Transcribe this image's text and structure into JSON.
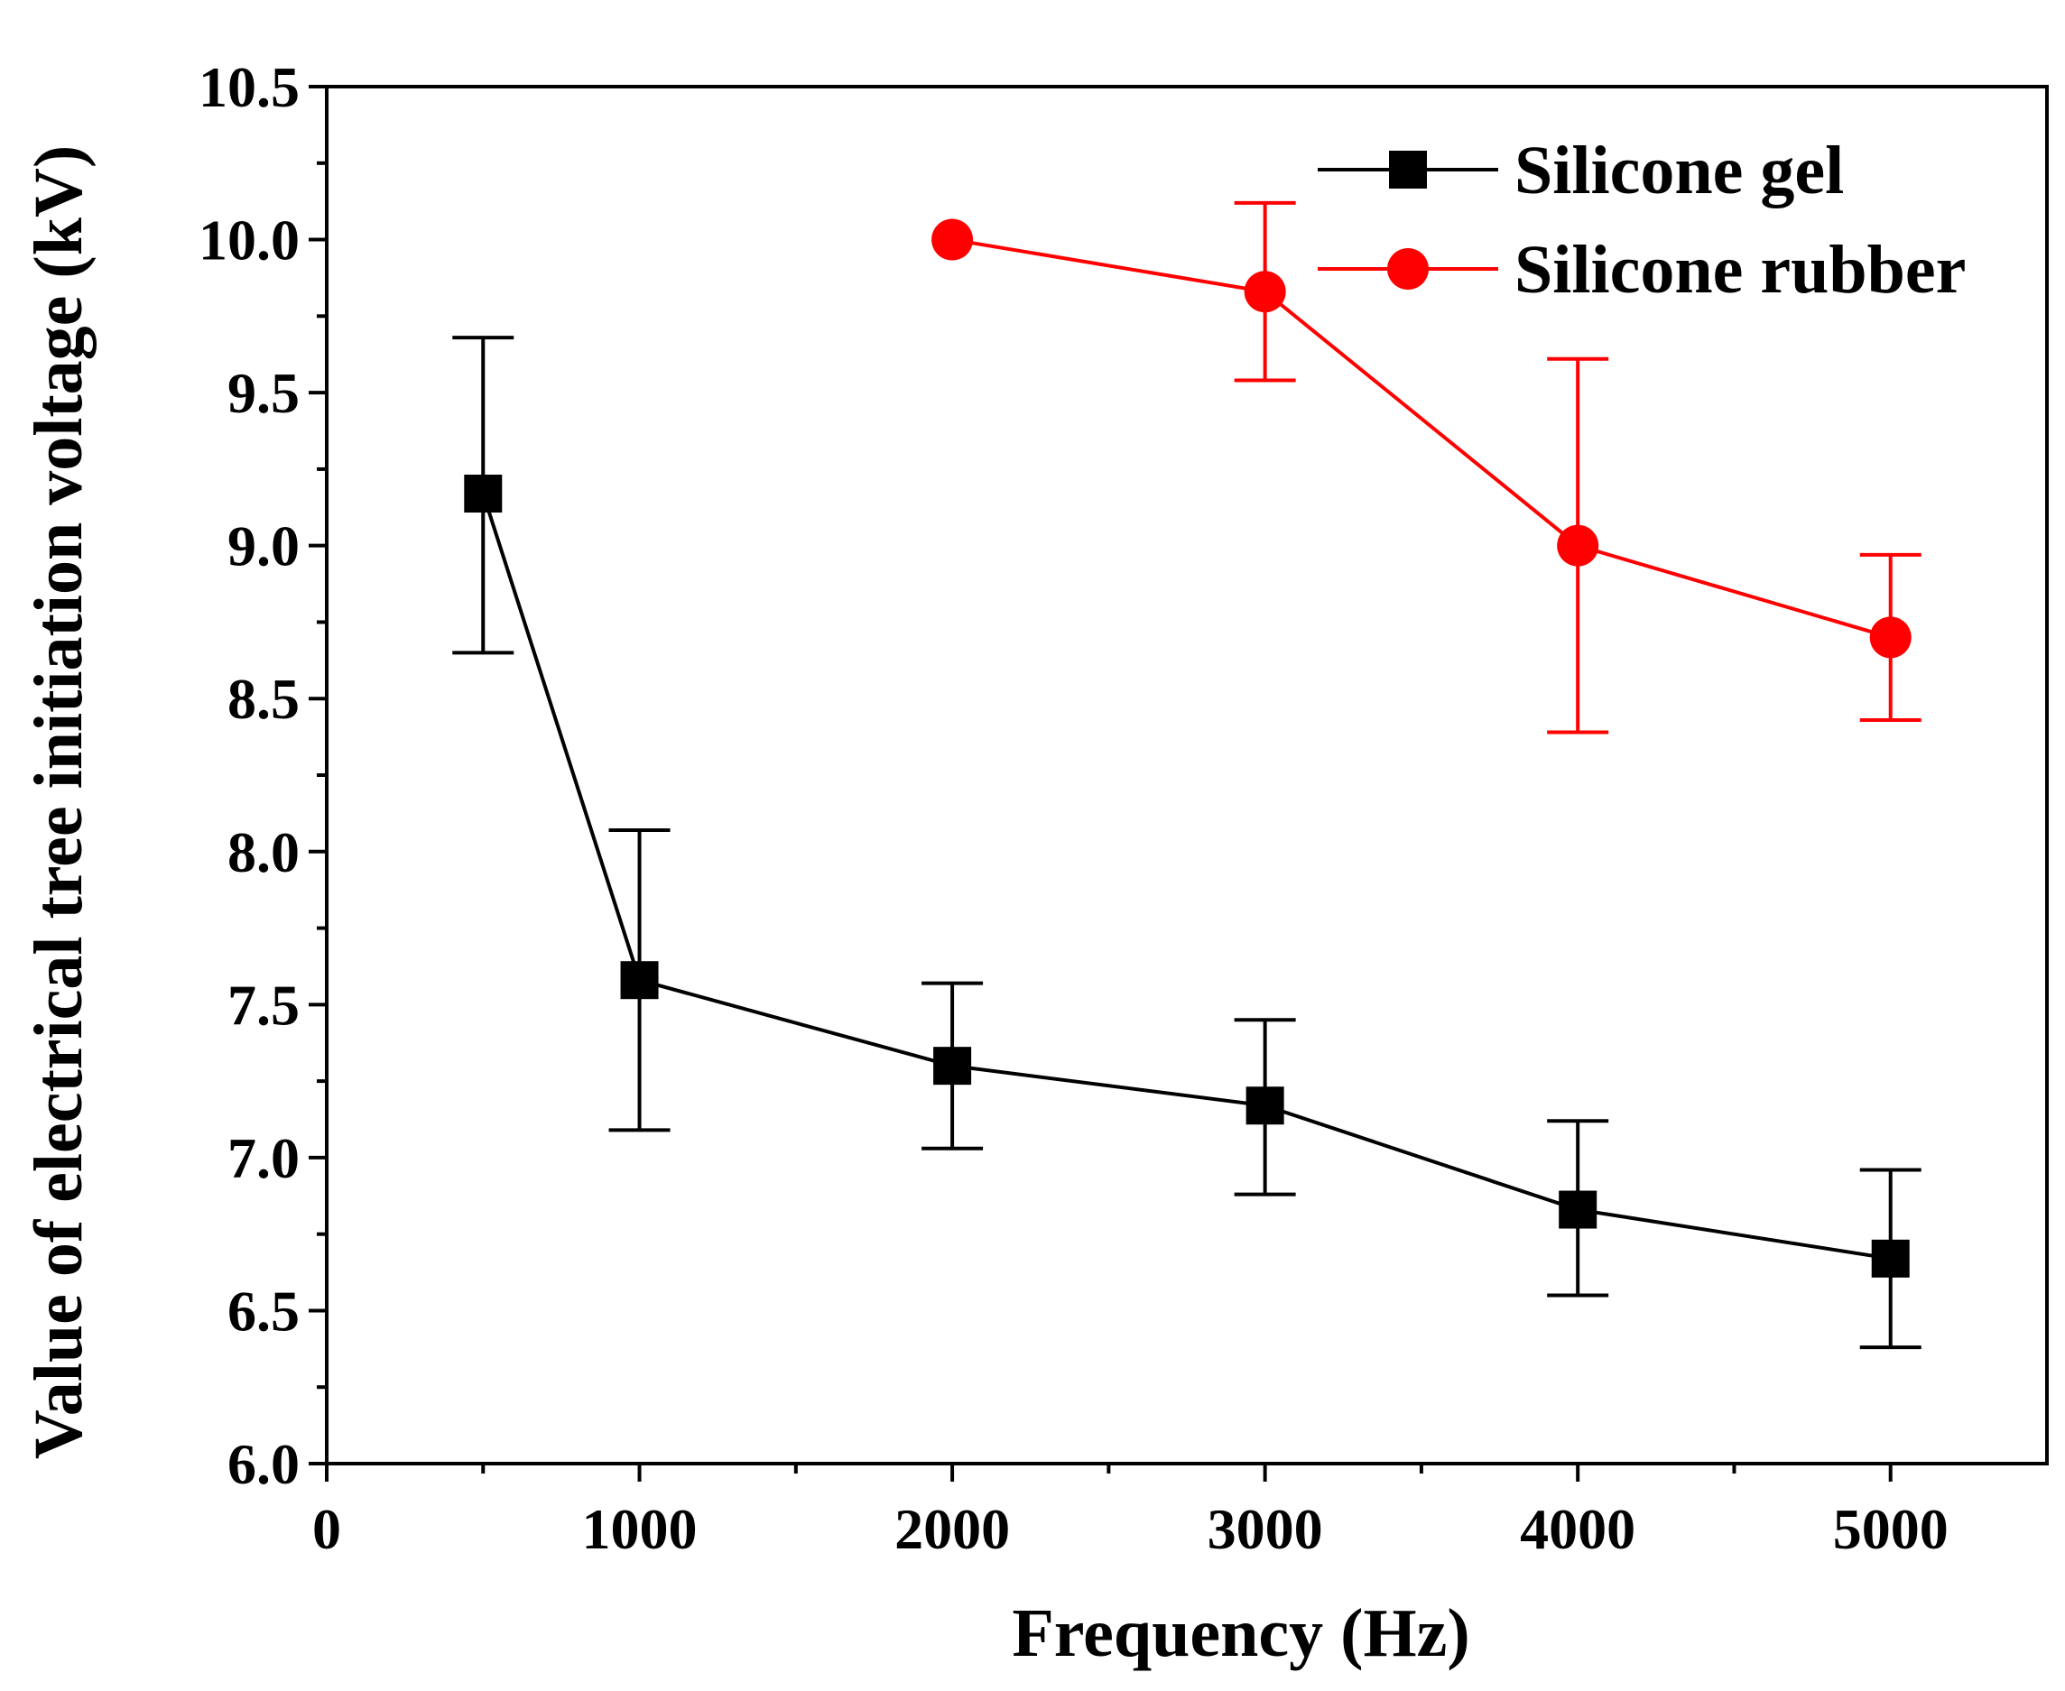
{
  "chart_data": {
    "type": "line",
    "title": "",
    "xlabel": "Frequency (Hz)",
    "ylabel": "Value of electrical tree initiation voltage (kV)",
    "xlim": [
      0,
      5500
    ],
    "ylim": [
      6.0,
      10.5
    ],
    "x_ticks": [
      0,
      1000,
      2000,
      3000,
      4000,
      5000
    ],
    "x_tick_labels": [
      "0",
      "1000",
      "2000",
      "3000",
      "4000",
      "5000"
    ],
    "y_ticks": [
      6.0,
      6.5,
      7.0,
      7.5,
      8.0,
      8.5,
      9.0,
      9.5,
      10.0,
      10.5
    ],
    "y_tick_labels": [
      "6.0",
      "6.5",
      "7.0",
      "7.5",
      "8.0",
      "8.5",
      "9.0",
      "9.5",
      "10.0",
      "10.5"
    ],
    "grid": false,
    "legend_position": "top-right",
    "series": [
      {
        "name": "Silicone gel",
        "color": "#000000",
        "marker": "square",
        "x": [
          500,
          1000,
          2000,
          3000,
          4000,
          5000
        ],
        "y": [
          9.17,
          7.58,
          7.3,
          7.17,
          6.83,
          6.67
        ],
        "err_low": [
          8.65,
          7.09,
          7.03,
          6.88,
          6.55,
          6.38
        ],
        "err_high": [
          9.68,
          8.07,
          7.57,
          7.45,
          7.12,
          6.96
        ]
      },
      {
        "name": "Silicone rubber",
        "color": "#ff0000",
        "marker": "circle",
        "x": [
          2000,
          3000,
          4000,
          5000
        ],
        "y": [
          10.0,
          9.83,
          9.0,
          8.7
        ],
        "err_low": [
          10.0,
          9.54,
          8.39,
          8.43
        ],
        "err_high": [
          10.0,
          10.12,
          9.61,
          8.97
        ]
      }
    ]
  }
}
